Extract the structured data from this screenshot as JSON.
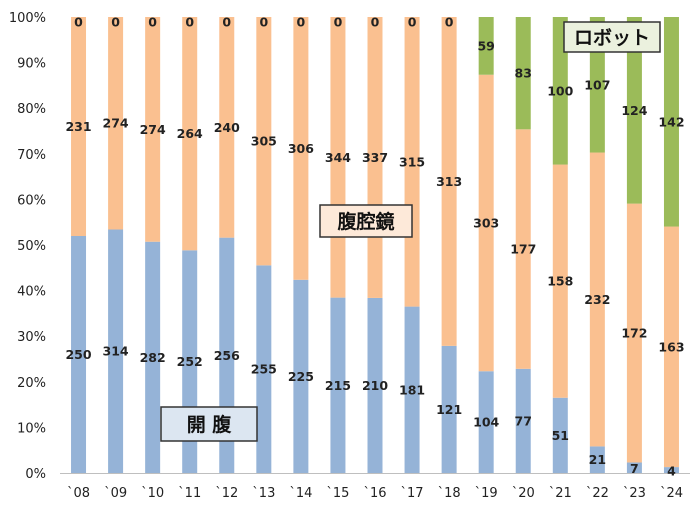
{
  "chart_data": {
    "type": "bar",
    "stacked": "percent",
    "categories": [
      "`08",
      "`09",
      "`10",
      "`11",
      "`12",
      "`13",
      "`14",
      "`15",
      "`16",
      "`17",
      "`18",
      "`19",
      "`20",
      "`21",
      "`22",
      "`23",
      "`24"
    ],
    "series": [
      {
        "name": "開 腹",
        "color": "#95B3D7",
        "values": [
          250,
          314,
          282,
          252,
          256,
          255,
          225,
          215,
          210,
          181,
          121,
          104,
          77,
          51,
          21,
          7,
          4
        ]
      },
      {
        "name": "腹腔鏡",
        "color": "#FAC090",
        "values": [
          231,
          274,
          274,
          264,
          240,
          305,
          306,
          344,
          337,
          315,
          313,
          303,
          177,
          158,
          232,
          172,
          163
        ]
      },
      {
        "name": "ロボット",
        "color": "#9BBB59",
        "values": [
          0,
          0,
          0,
          0,
          0,
          0,
          0,
          0,
          0,
          0,
          0,
          59,
          83,
          100,
          107,
          124,
          142
        ]
      }
    ],
    "yticks": [
      "0%",
      "10%",
      "20%",
      "30%",
      "40%",
      "50%",
      "60%",
      "70%",
      "80%",
      "90%",
      "100%"
    ],
    "ylim": [
      0,
      100
    ],
    "grid": false,
    "legend": "in-chart labels",
    "annotations": [
      {
        "text": "ロボット",
        "series": 2,
        "fill": "#EBF1DE"
      },
      {
        "text": "腹腔鏡",
        "series": 1,
        "fill": "#FDE9D9"
      },
      {
        "text": "開 腹",
        "series": 0,
        "fill": "#DCE6F1"
      }
    ]
  }
}
